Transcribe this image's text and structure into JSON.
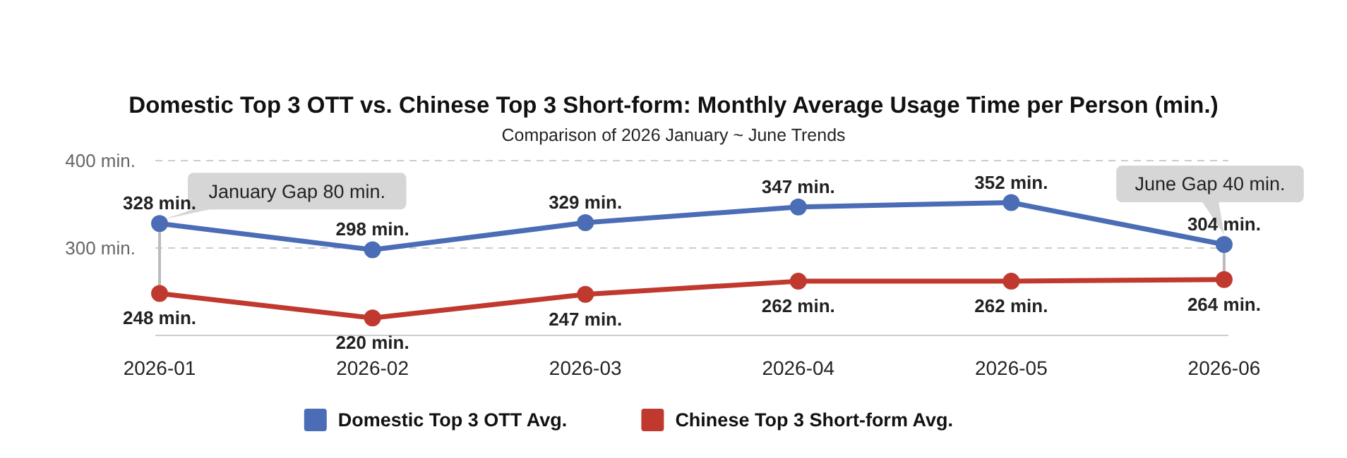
{
  "chart_data": {
    "type": "line",
    "title": "Domestic Top 3 OTT vs. Chinese Top 3 Short-form: Monthly Average Usage Time per Person (min.)",
    "subtitle": "Comparison of 2026 January ~ June Trends",
    "categories": [
      "2026-01",
      "2026-02",
      "2026-03",
      "2026-04",
      "2026-05",
      "2026-06"
    ],
    "series": [
      {
        "name": "Domestic Top 3 OTT Avg.",
        "color": "#4a6db5",
        "values": [
          328,
          298,
          329,
          347,
          352,
          304
        ],
        "value_labels": [
          "328 min.",
          "298 min.",
          "329 min.",
          "347 min.",
          "352 min.",
          "304 min."
        ]
      },
      {
        "name": "Chinese Top 3 Short-form Avg.",
        "color": "#c0392f",
        "values": [
          248,
          220,
          247,
          262,
          262,
          264
        ],
        "value_labels": [
          "248 min.",
          "220 min.",
          "247 min.",
          "262 min.",
          "262 min.",
          "264 min."
        ]
      }
    ],
    "ylim": [
      200,
      400
    ],
    "yticks": [
      {
        "value": 300,
        "label": "300 min."
      },
      {
        "value": 400,
        "label": "400 min."
      }
    ],
    "grid": "y",
    "legend": "bottom",
    "marker": "circle",
    "line_style": "solid",
    "annotations": [
      {
        "text": "January Gap 80 min.",
        "x": "2026-01",
        "y": 328
      },
      {
        "text": "June Gap 40 min.",
        "x": "2026-06",
        "y": 304
      }
    ]
  }
}
